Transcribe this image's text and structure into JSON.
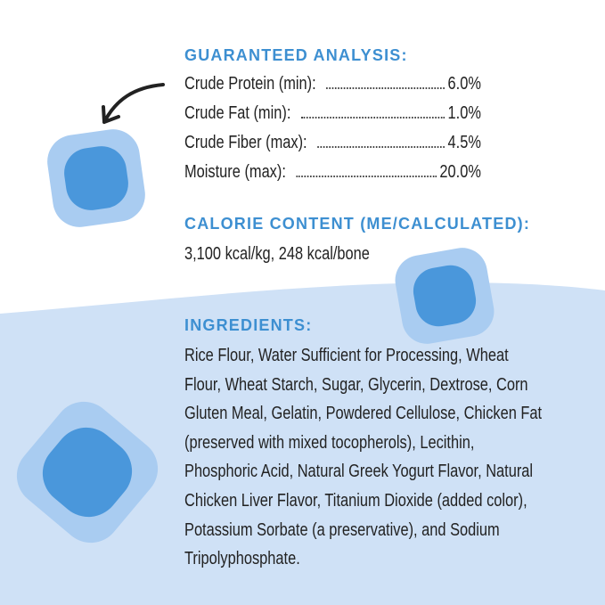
{
  "analysis": {
    "title": "GUARANTEED ANALYSIS:",
    "rows": [
      [
        "Crude Protein (min):",
        "6.0%"
      ],
      [
        "Crude Fat (min):",
        "1.0%"
      ],
      [
        "Crude Fiber (max):",
        "4.5%"
      ],
      [
        "Moisture (max):",
        "20.0%"
      ]
    ]
  },
  "calorie": {
    "title": "CALORIE CONTENT (ME/CALCULATED):",
    "text": "3,100 kcal/kg, 248 kcal/bone"
  },
  "ingredients": {
    "title": "INGREDIENTS:",
    "lines": [
      "Rice Flour, Water Sufficient for Processing, Wheat",
      "Flour, Wheat Starch, Sugar, Glycerin, Dextrose, Corn",
      "Gluten Meal, Gelatin, Powdered Cellulose, Chicken Fat",
      "(preserved with mixed tocopherols), Lecithin,",
      "Phosphoric Acid, Natural Greek Yogurt Flavor, Natural",
      "Chicken Liver Flavor, Titanium Dioxide (added color),",
      "Potassium Sorbate (a preservative), and Sodium",
      "Tripolyphosphate."
    ]
  }
}
